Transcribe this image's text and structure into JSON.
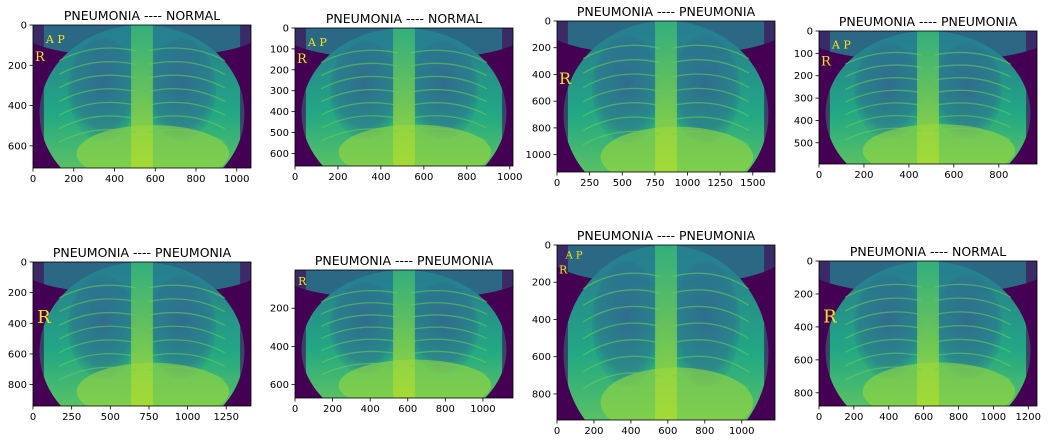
{
  "chart_data": [
    {
      "type": "heatmap",
      "title": "PNEUMONIA ---- NORMAL",
      "image_size": [
        1070,
        710
      ],
      "xlim": [
        0,
        1070
      ],
      "ylim": [
        710,
        0
      ],
      "xticks": [
        "0",
        "200",
        "400",
        "600",
        "800",
        "1000"
      ],
      "yticks": [
        "0",
        "200",
        "400",
        "600"
      ],
      "xtick_values": [
        0,
        200,
        400,
        600,
        800,
        1000
      ],
      "ytick_values": [
        0,
        200,
        400,
        600
      ],
      "markers": [
        {
          "text": "A  P"
        },
        {
          "text": "R"
        }
      ]
    },
    {
      "type": "heatmap",
      "title": "PNEUMONIA ---- NORMAL",
      "image_size": [
        1015,
        660
      ],
      "xlim": [
        0,
        1015
      ],
      "ylim": [
        660,
        0
      ],
      "xticks": [
        "0",
        "200",
        "400",
        "600",
        "800",
        "1000"
      ],
      "yticks": [
        "0",
        "100",
        "200",
        "300",
        "400",
        "500",
        "600"
      ],
      "xtick_values": [
        0,
        200,
        400,
        600,
        800,
        1000
      ],
      "ytick_values": [
        0,
        100,
        200,
        300,
        400,
        500,
        600
      ],
      "markers": [
        {
          "text": "A  P"
        },
        {
          "text": "R"
        }
      ]
    },
    {
      "type": "heatmap",
      "title": "PNEUMONIA ---- PNEUMONIA",
      "image_size": [
        1670,
        1130
      ],
      "xlim": [
        0,
        1670
      ],
      "ylim": [
        1130,
        0
      ],
      "xticks": [
        "0",
        "250",
        "500",
        "750",
        "1000",
        "1250",
        "1500"
      ],
      "yticks": [
        "0",
        "200",
        "400",
        "600",
        "800",
        "1000"
      ],
      "xtick_values": [
        0,
        250,
        500,
        750,
        1000,
        1250,
        1500
      ],
      "ytick_values": [
        0,
        200,
        400,
        600,
        800,
        1000
      ],
      "markers": [
        {
          "text": "R"
        }
      ]
    },
    {
      "type": "heatmap",
      "title": "PNEUMONIA ---- PNEUMONIA",
      "image_size": [
        970,
        595
      ],
      "xlim": [
        0,
        970
      ],
      "ylim": [
        595,
        0
      ],
      "xticks": [
        "0",
        "200",
        "400",
        "600",
        "800"
      ],
      "yticks": [
        "0",
        "100",
        "200",
        "300",
        "400",
        "500"
      ],
      "xtick_values": [
        0,
        200,
        400,
        600,
        800
      ],
      "ytick_values": [
        0,
        100,
        200,
        300,
        400,
        500
      ],
      "markers": [
        {
          "text": "A  P"
        },
        {
          "text": "R"
        }
      ]
    },
    {
      "type": "heatmap",
      "title": "PNEUMONIA ---- PNEUMONIA",
      "image_size": [
        1410,
        940
      ],
      "xlim": [
        0,
        1410
      ],
      "ylim": [
        940,
        0
      ],
      "xticks": [
        "0",
        "250",
        "500",
        "750",
        "1000",
        "1250"
      ],
      "yticks": [
        "0",
        "200",
        "400",
        "600",
        "800"
      ],
      "xtick_values": [
        0,
        250,
        500,
        750,
        1000,
        1250
      ],
      "ytick_values": [
        0,
        200,
        400,
        600,
        800
      ],
      "markers": [
        {
          "text": "R"
        }
      ]
    },
    {
      "type": "heatmap",
      "title": "PNEUMONIA ---- PNEUMONIA",
      "image_size": [
        1160,
        670
      ],
      "xlim": [
        0,
        1160
      ],
      "ylim": [
        670,
        0
      ],
      "xticks": [
        "0",
        "200",
        "400",
        "600",
        "800",
        "1000"
      ],
      "yticks": [
        "200",
        "400",
        "600"
      ],
      "xtick_values": [
        0,
        200,
        400,
        600,
        800,
        1000
      ],
      "ytick_values": [
        200,
        400,
        600
      ],
      "markers": [
        {
          "text": "R"
        }
      ]
    },
    {
      "type": "heatmap",
      "title": "PNEUMONIA ---- PNEUMONIA",
      "image_size": [
        1180,
        940
      ],
      "xlim": [
        0,
        1180
      ],
      "ylim": [
        940,
        0
      ],
      "xticks": [
        "0",
        "200",
        "400",
        "600",
        "800",
        "1000"
      ],
      "yticks": [
        "0",
        "200",
        "400",
        "600",
        "800"
      ],
      "xtick_values": [
        0,
        200,
        400,
        600,
        800,
        1000
      ],
      "ytick_values": [
        0,
        200,
        400,
        600,
        800
      ],
      "markers": [
        {
          "text": "A  P"
        },
        {
          "text": "R"
        }
      ]
    },
    {
      "type": "heatmap",
      "title": "PNEUMONIA ---- NORMAL",
      "image_size": [
        1250,
        880
      ],
      "xlim": [
        0,
        1250
      ],
      "ylim": [
        880,
        0
      ],
      "xticks": [
        "0",
        "200",
        "400",
        "600",
        "800",
        "1000",
        "1200"
      ],
      "yticks": [
        "0",
        "200",
        "400",
        "600",
        "800"
      ],
      "xtick_values": [
        0,
        200,
        400,
        600,
        800,
        1000,
        1200
      ],
      "ytick_values": [
        0,
        200,
        400,
        600,
        800
      ],
      "markers": [
        {
          "text": "R"
        }
      ]
    }
  ],
  "colors": {
    "dark": "#440154",
    "mid": "#2a788e",
    "teal": "#21918c",
    "green": "#5ec962",
    "yellow": "#fde725",
    "marker": "#f2e21f"
  }
}
